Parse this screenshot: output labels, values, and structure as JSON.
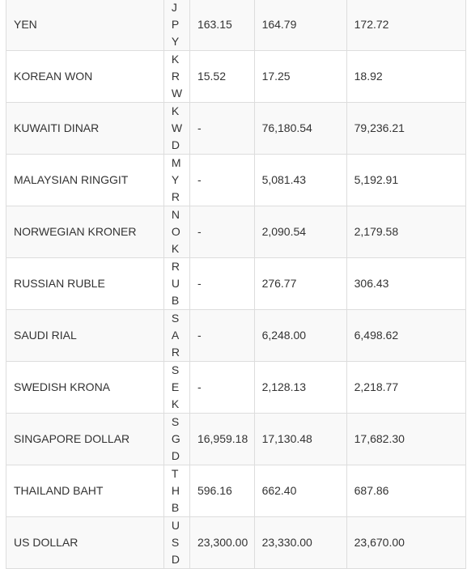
{
  "rates": [
    {
      "currency": "YEN",
      "code": "JPY",
      "value1": "163.15",
      "value2": "164.79",
      "value3": "172.72"
    },
    {
      "currency": "KOREAN WON",
      "code": "KRW",
      "value1": "15.52",
      "value2": "17.25",
      "value3": "18.92"
    },
    {
      "currency": "KUWAITI DINAR",
      "code": "KWD",
      "value1": "-",
      "value2": "76,180.54",
      "value3": "79,236.21"
    },
    {
      "currency": "MALAYSIAN RINGGIT",
      "code": "MYR",
      "value1": "-",
      "value2": "5,081.43",
      "value3": "5,192.91"
    },
    {
      "currency": "NORWEGIAN KRONER",
      "code": "NOK",
      "value1": "-",
      "value2": "2,090.54",
      "value3": "2,179.58"
    },
    {
      "currency": "RUSSIAN RUBLE",
      "code": "RUB",
      "value1": "-",
      "value2": "276.77",
      "value3": "306.43"
    },
    {
      "currency": "SAUDI RIAL",
      "code": "SAR",
      "value1": "-",
      "value2": "6,248.00",
      "value3": "6,498.62"
    },
    {
      "currency": "SWEDISH KRONA",
      "code": "SEK",
      "value1": "-",
      "value2": "2,128.13",
      "value3": "2,218.77"
    },
    {
      "currency": "SINGAPORE DOLLAR",
      "code": "SGD",
      "value1": "16,959.18",
      "value2": "17,130.48",
      "value3": "17,682.30"
    },
    {
      "currency": "THAILAND BAHT",
      "code": "THB",
      "value1": "596.16",
      "value2": "662.40",
      "value3": "687.86"
    },
    {
      "currency": "US DOLLAR",
      "code": "USD",
      "value1": "23,300.00",
      "value2": "23,330.00",
      "value3": "23,670.00"
    }
  ]
}
